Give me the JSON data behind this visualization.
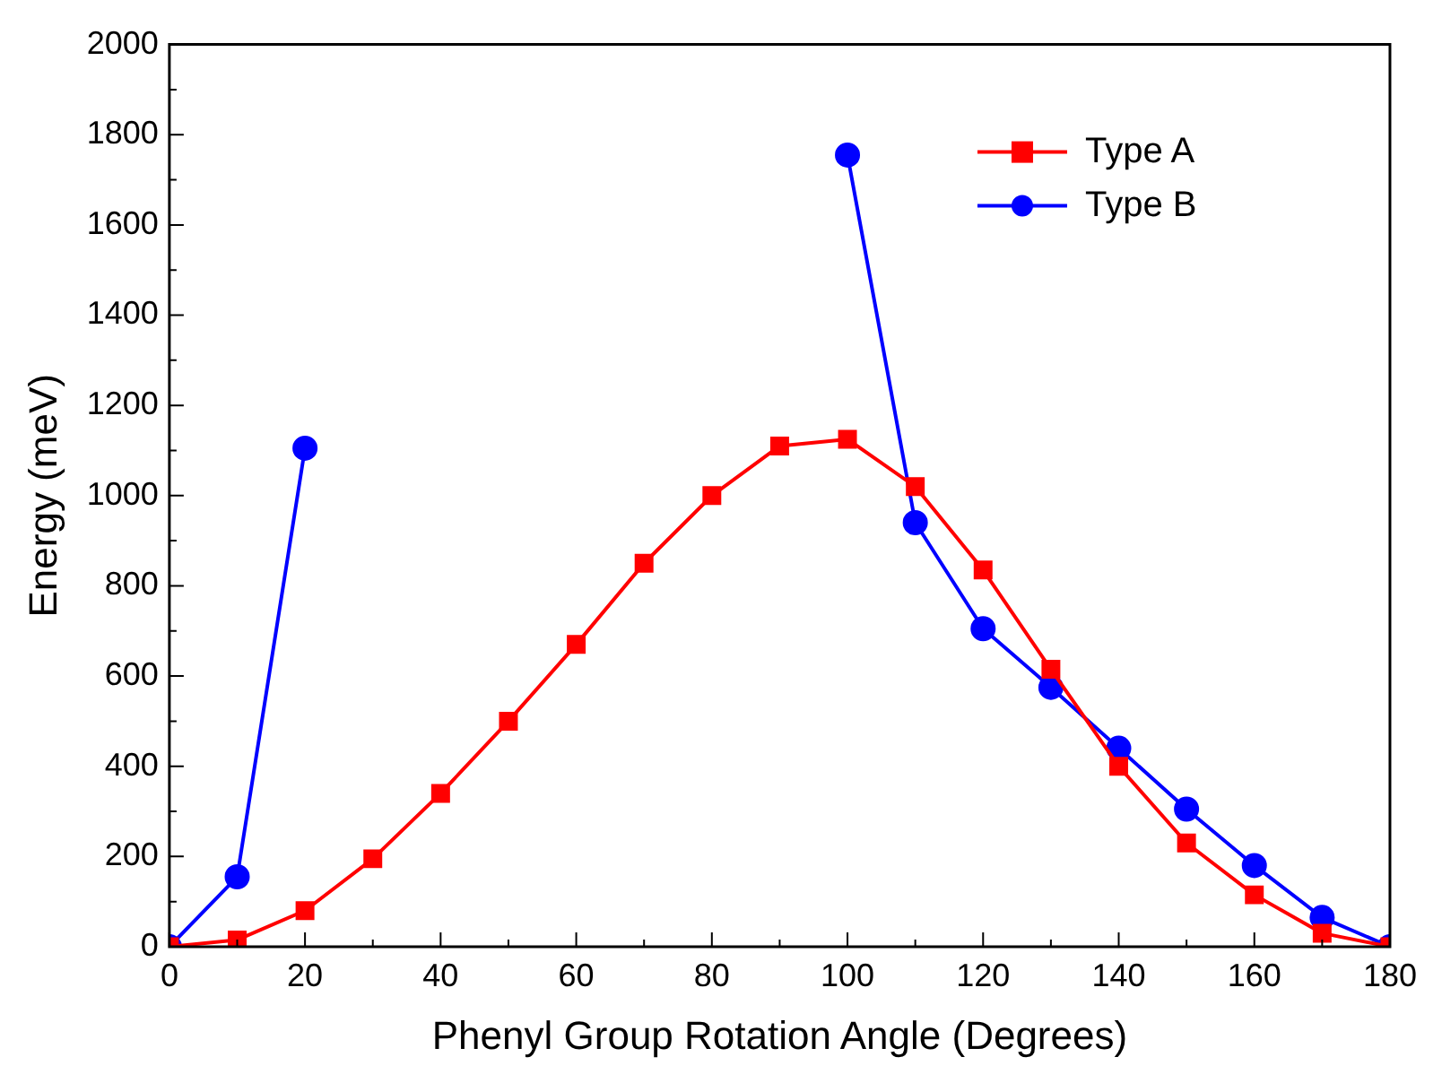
{
  "chart_data": {
    "type": "line",
    "xlabel": "Phenyl Group Rotation Angle (Degrees)",
    "ylabel": "Energy (meV)",
    "x": [
      0,
      10,
      20,
      30,
      40,
      50,
      60,
      70,
      80,
      90,
      100,
      110,
      120,
      130,
      140,
      150,
      160,
      170,
      180
    ],
    "series": [
      {
        "name": "Type A",
        "color": "#ff0000",
        "marker": "square",
        "values": [
          0,
          15,
          80,
          195,
          340,
          500,
          670,
          850,
          1000,
          1110,
          1125,
          1020,
          835,
          615,
          400,
          230,
          115,
          30,
          0
        ]
      },
      {
        "name": "Type B",
        "color": "#0000ff",
        "marker": "circle",
        "values": [
          0,
          155,
          1105,
          null,
          null,
          null,
          null,
          null,
          null,
          null,
          1755,
          940,
          705,
          575,
          440,
          305,
          180,
          65,
          0
        ]
      }
    ],
    "xlim": [
      0,
      180
    ],
    "xticks": [
      0,
      20,
      40,
      60,
      80,
      100,
      120,
      140,
      160,
      180
    ],
    "ylim": [
      0,
      2000
    ],
    "yticks": [
      0,
      200,
      400,
      600,
      800,
      1000,
      1200,
      1400,
      1600,
      1800,
      2000
    ],
    "grid": false,
    "legend": "top right"
  }
}
